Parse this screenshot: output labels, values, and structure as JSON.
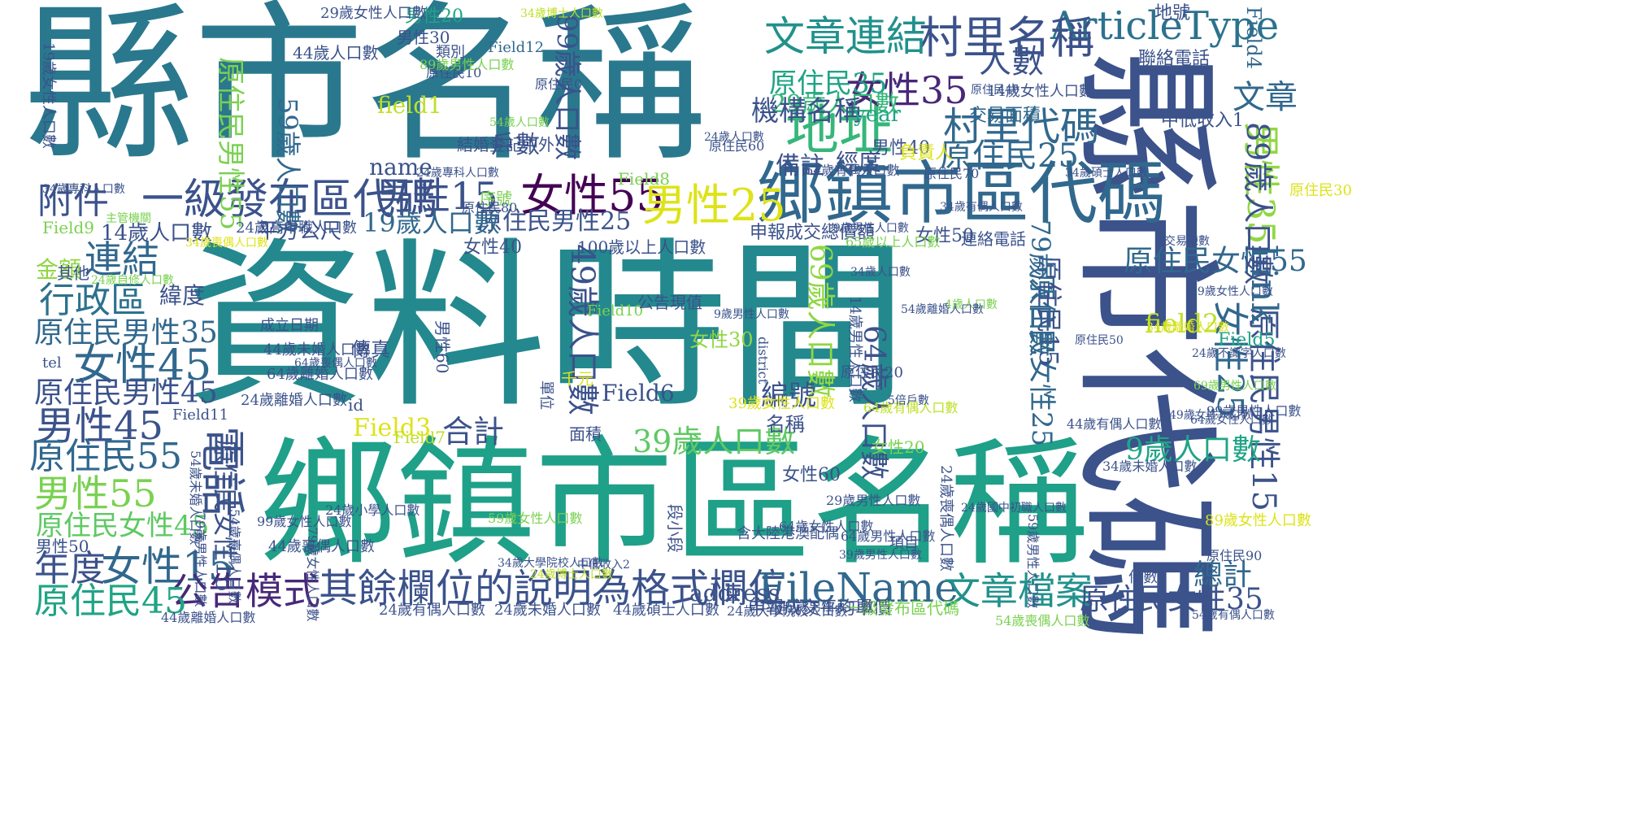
{
  "words": [
    {
      "text": "縣市名稱",
      "color": "#2a788e"
    },
    {
      "text": "資料時間",
      "color": "#23898e"
    },
    {
      "text": "鄉鎮市區名稱",
      "color": "#1fa088"
    },
    {
      "text": "縣市代碼",
      "color": "#3b528b"
    },
    {
      "text": "鄉鎮市區代碼",
      "color": "#31688e"
    },
    {
      "text": "一級發布區代碼",
      "color": "#3b528b"
    },
    {
      "text": "其餘欄位的說明為格式欄位",
      "color": "#3b528b"
    },
    {
      "text": "FileName",
      "color": "#31688e"
    },
    {
      "text": "ArticleType",
      "color": "#2c728e"
    },
    {
      "text": "村里名稱",
      "color": "#3b528b"
    },
    {
      "text": "村里代碼",
      "color": "#31688e"
    },
    {
      "text": "文章連結",
      "color": "#21918c"
    },
    {
      "text": "地址",
      "color": "#35b779"
    },
    {
      "text": "女性35",
      "color": "#482878"
    },
    {
      "text": "男性35",
      "color": "#90d743"
    },
    {
      "text": "女性25",
      "color": "#31688e"
    },
    {
      "text": "原住民男性15",
      "color": "#3b528b"
    },
    {
      "text": "女性55",
      "color": "#440154"
    },
    {
      "text": "男性25",
      "color": "#dde318"
    },
    {
      "text": "男性15",
      "color": "#3b528b"
    },
    {
      "text": "女性45",
      "color": "#31688e"
    },
    {
      "text": "男性45",
      "color": "#3b528b"
    },
    {
      "text": "男性55",
      "color": "#7ad151"
    },
    {
      "text": "女性15",
      "color": "#31688e"
    },
    {
      "text": "電話",
      "color": "#3b528b"
    },
    {
      "text": "公告模式",
      "color": "#482878"
    },
    {
      "text": "文章檔案",
      "color": "#21918c"
    },
    {
      "text": "原住民25",
      "color": "#31688e"
    },
    {
      "text": "人數",
      "color": "#3b528b"
    },
    {
      "text": "29歲人口數",
      "color": "#35b779"
    },
    {
      "text": "原住民35",
      "color": "#20a486"
    },
    {
      "text": "文章",
      "color": "#31688e"
    },
    {
      "text": "附件",
      "color": "#3b528b"
    },
    {
      "text": "連結",
      "color": "#31688e"
    },
    {
      "text": "行政區",
      "color": "#2c728e"
    },
    {
      "text": "原住民男性35",
      "color": "#31688e"
    },
    {
      "text": "原住民男性45",
      "color": "#3b528b"
    },
    {
      "text": "原住民55",
      "color": "#31688e"
    },
    {
      "text": "原住民女性45",
      "color": "#5ec962"
    },
    {
      "text": "年度",
      "color": "#3b528b"
    },
    {
      "text": "原住民45",
      "color": "#20a486"
    },
    {
      "text": "Link",
      "color": "#31688e"
    },
    {
      "text": "原住民女性55",
      "color": "#31688e"
    },
    {
      "text": "原住民女性35",
      "color": "#3b528b"
    },
    {
      "text": "總計",
      "color": "#31688e"
    },
    {
      "text": "9歲人口數",
      "color": "#20a486"
    },
    {
      "text": "89歲人口數",
      "color": "#3b528b"
    },
    {
      "text": "原住民男性55",
      "color": "#7ad151"
    },
    {
      "text": "原住民男性25",
      "color": "#3b528b"
    },
    {
      "text": "原住民女性25",
      "color": "#31688e"
    },
    {
      "text": "原住民15",
      "color": "#3b528b"
    },
    {
      "text": "79歲人口數",
      "color": "#31688e"
    },
    {
      "text": "原住民女性15",
      "color": "#3b528b"
    },
    {
      "text": "19歲人口數",
      "color": "#31688e"
    },
    {
      "text": "14歲人口數",
      "color": "#3b528b"
    },
    {
      "text": "39歲人口數",
      "color": "#5ec962"
    },
    {
      "text": "49歲人口數",
      "color": "#3b528b"
    },
    {
      "text": "59歲人口數",
      "color": "#31688e"
    },
    {
      "text": "64歲人口數",
      "color": "#3b528b"
    },
    {
      "text": "69歲人口數",
      "color": "#90d743"
    },
    {
      "text": "99歲人口數",
      "color": "#3b528b"
    },
    {
      "text": "合計",
      "color": "#3b528b"
    },
    {
      "text": "address",
      "color": "#3b528b"
    },
    {
      "text": "name",
      "color": "#3b528b"
    },
    {
      "text": "field1",
      "color": "#bddf26"
    },
    {
      "text": "field2",
      "color": "#bddf26"
    },
    {
      "text": "Field3",
      "color": "#dde318"
    },
    {
      "text": "Field4",
      "color": "#31688e"
    },
    {
      "text": "Field5",
      "color": "#20a486"
    },
    {
      "text": "Field6",
      "color": "#3b528b"
    },
    {
      "text": "Field7",
      "color": "#bddf26"
    },
    {
      "text": "Field8",
      "color": "#7ad151"
    },
    {
      "text": "Field9",
      "color": "#7ad151"
    },
    {
      "text": "Field10",
      "color": "#7ad151"
    },
    {
      "text": "Field11",
      "color": "#3b528b"
    },
    {
      "text": "Field12",
      "color": "#31688e"
    },
    {
      "text": "機構名稱",
      "color": "#3b528b"
    },
    {
      "text": "備註",
      "color": "#3b528b"
    },
    {
      "text": "戶數",
      "color": "#3b528b"
    },
    {
      "text": "編號",
      "color": "#3b528b"
    },
    {
      "text": "金額",
      "color": "#90d743"
    },
    {
      "text": "緯度",
      "color": "#3b528b"
    },
    {
      "text": "經度",
      "color": "#3b528b"
    },
    {
      "text": "year",
      "color": "#20a486"
    },
    {
      "text": "平方公尺",
      "color": "#3b528b"
    },
    {
      "text": "交易面積",
      "color": "#31688e"
    },
    {
      "text": "地號",
      "color": "#3b528b"
    },
    {
      "text": "聯絡電話",
      "color": "#3b528b"
    },
    {
      "text": "中低收入1",
      "color": "#3b528b"
    },
    {
      "text": "男性20",
      "color": "#20a486"
    },
    {
      "text": "男性30",
      "color": "#3b528b"
    },
    {
      "text": "男性40",
      "color": "#3b528b"
    },
    {
      "text": "男性50",
      "color": "#3b528b"
    },
    {
      "text": "男性60",
      "color": "#3b528b"
    },
    {
      "text": "女性20",
      "color": "#7ad151"
    },
    {
      "text": "女性30",
      "color": "#90d743"
    },
    {
      "text": "女性40",
      "color": "#3b528b"
    },
    {
      "text": "女性50",
      "color": "#3b528b"
    },
    {
      "text": "女性60",
      "color": "#3b528b"
    },
    {
      "text": "序號",
      "color": "#7ad151"
    },
    {
      "text": "id",
      "color": "#3b528b"
    },
    {
      "text": "傳真",
      "color": "#3b528b"
    },
    {
      "text": "名稱",
      "color": "#3b528b"
    },
    {
      "text": "千元",
      "color": "#dde318"
    },
    {
      "text": "面積",
      "color": "#3b528b"
    },
    {
      "text": "其他",
      "color": "#3b528b"
    },
    {
      "text": "類別",
      "color": "#3b528b"
    },
    {
      "text": "負責人",
      "color": "#dde318"
    },
    {
      "text": "項目",
      "color": "#3b528b"
    },
    {
      "text": "單位",
      "color": "#3b528b"
    },
    {
      "text": "件數",
      "color": "#3b528b"
    },
    {
      "text": "tel",
      "color": "#3b528b"
    },
    {
      "text": "district",
      "color": "#3b528b"
    },
    {
      "text": "公告現值",
      "color": "#3b528b"
    },
    {
      "text": "成立日期",
      "color": "#3b528b"
    },
    {
      "text": "連絡電話",
      "color": "#3b528b"
    },
    {
      "text": "交易棟數",
      "color": "#3b528b"
    },
    {
      "text": "主管機關",
      "color": "#7ad151"
    },
    {
      "text": "中低收入2",
      "color": "#3b528b"
    },
    {
      "text": "段小段",
      "color": "#3b528b"
    },
    {
      "text": "申報成交總價額",
      "color": "#3b528b"
    },
    {
      "text": "申報成交平均單價",
      "color": "#3b528b"
    },
    {
      "text": "100歲以上人口數",
      "color": "#3b528b"
    },
    {
      "text": "一級發布區代碼",
      "color": "#7ad151"
    },
    {
      "text": "結婚登記中外",
      "color": "#3b528b"
    },
    {
      "text": "含大陸港澳配偶",
      "color": "#3b528b"
    },
    {
      "text": "原住民0",
      "color": "#3b528b"
    },
    {
      "text": "原住民10",
      "color": "#3b528b"
    },
    {
      "text": "原住民20",
      "color": "#3b528b"
    },
    {
      "text": "原住民30",
      "color": "#dde318"
    },
    {
      "text": "原住民40",
      "color": "#3b528b"
    },
    {
      "text": "原住民50",
      "color": "#3b528b"
    },
    {
      "text": "原住民60",
      "color": "#3b528b"
    },
    {
      "text": "原住民70",
      "color": "#3b528b"
    },
    {
      "text": "原住民80",
      "color": "#3b528b"
    },
    {
      "text": "原住民90",
      "color": "#3b528b"
    },
    {
      "text": "29歲女性人口數",
      "color": "#3b528b"
    },
    {
      "text": "34歲博士人口數",
      "color": "#bddf26"
    },
    {
      "text": "89歲男性人口數",
      "color": "#7ad151"
    },
    {
      "text": "44歲人口數",
      "color": "#3b528b"
    },
    {
      "text": "19歲女性人口數",
      "color": "#3b528b"
    },
    {
      "text": "14歲女性人口數",
      "color": "#3b528b"
    },
    {
      "text": "54歲人口數",
      "color": "#7ad151"
    },
    {
      "text": "24歲人口數",
      "color": "#3b528b"
    },
    {
      "text": "34歲有偶人口數",
      "color": "#3b528b"
    },
    {
      "text": "24歲專科人口數",
      "color": "#3b528b"
    },
    {
      "text": "34歲碩士人口數",
      "color": "#3b528b"
    },
    {
      "text": "34歲專科人口數",
      "color": "#3b528b"
    },
    {
      "text": "34歲喪偶人口數",
      "color": "#dde318"
    },
    {
      "text": "24歲自修人口數",
      "color": "#7ad151"
    },
    {
      "text": "24歲高中職人口數",
      "color": "#3b528b"
    },
    {
      "text": "19歲男性人口數",
      "color": "#3b528b"
    },
    {
      "text": "65歲以上人口數",
      "color": "#7ad151"
    },
    {
      "text": "34歲人口數",
      "color": "#3b528b"
    },
    {
      "text": "4歲人口數",
      "color": "#7ad151"
    },
    {
      "text": "14歲男性人口數",
      "color": "#3b528b"
    },
    {
      "text": "44歲未婚人口數",
      "color": "#3b528b"
    },
    {
      "text": "64歲離婚人口數",
      "color": "#3b528b"
    },
    {
      "text": "24歲離婚人口數",
      "color": "#3b528b"
    },
    {
      "text": "64歲喪偶人口數",
      "color": "#3b528b"
    },
    {
      "text": "64歲有偶人口數",
      "color": "#bddf26"
    },
    {
      "text": "54歲離婚人口數",
      "color": "#3b528b"
    },
    {
      "text": "34歲離婚人口數",
      "color": "#dde318"
    },
    {
      "text": "69歲女性人口數",
      "color": "#3b528b"
    },
    {
      "text": "69歲男性人口數",
      "color": "#7ad151"
    },
    {
      "text": "24歲不識字人口數",
      "color": "#3b528b"
    },
    {
      "text": "99歲男性人口數",
      "color": "#3b528b"
    },
    {
      "text": "64歲女性人口數",
      "color": "#3b528b"
    },
    {
      "text": "5倍戶數",
      "color": "#3b528b"
    },
    {
      "text": "9歲男性人口數",
      "color": "#3b528b"
    },
    {
      "text": "39歲女性人口數",
      "color": "#dde318"
    },
    {
      "text": "54歲喪偶人口數",
      "color": "#3b528b"
    },
    {
      "text": "44歲喪偶人口數",
      "color": "#3b528b"
    },
    {
      "text": "79歲男性人口數",
      "color": "#3b528b"
    },
    {
      "text": "79歲女性人口數",
      "color": "#3b528b"
    },
    {
      "text": "24歲有偶人口數",
      "color": "#3b528b"
    },
    {
      "text": "24歲未婚人口數",
      "color": "#3b528b"
    },
    {
      "text": "44歲碩士人口數",
      "color": "#3b528b"
    },
    {
      "text": "24歲大學院校人口數",
      "color": "#3b528b"
    },
    {
      "text": "49歲男性人口數",
      "color": "#3b528b"
    },
    {
      "text": "54歲喪偶人口數",
      "color": "#7ad151"
    },
    {
      "text": "44歲離婚人口數",
      "color": "#3b528b"
    },
    {
      "text": "54歲未婚人口數",
      "color": "#3b528b"
    },
    {
      "text": "99歲女性人口數",
      "color": "#3b528b"
    },
    {
      "text": "39歲男性人口數",
      "color": "#3b528b"
    },
    {
      "text": "89歲女性人口數",
      "color": "#dde318"
    },
    {
      "text": "59歲男性人口數",
      "color": "#3b528b"
    },
    {
      "text": "29歲男性人口數",
      "color": "#3b528b"
    },
    {
      "text": "24歲喪偶人口數",
      "color": "#3b528b"
    },
    {
      "text": "34歲未婚人口數",
      "color": "#3b528b"
    },
    {
      "text": "44歲有偶人口數",
      "color": "#3b528b"
    },
    {
      "text": "24歲國中初職人口數",
      "color": "#3b528b"
    },
    {
      "text": "64歲有偶人口數",
      "color": "#3b528b"
    },
    {
      "text": "54歲有偶人口數",
      "color": "#3b528b"
    },
    {
      "text": "24歲博士人口數",
      "color": "#bddf26"
    },
    {
      "text": "49歲女性人口數",
      "color": "#3b528b"
    },
    {
      "text": "64歲女性人口數",
      "color": "#3b528b"
    },
    {
      "text": "24歲小學人口數",
      "color": "#3b528b"
    },
    {
      "text": "59歲女性人口數",
      "color": "#7ad151"
    },
    {
      "text": "34歲大學院校人口數",
      "color": "#3b528b"
    },
    {
      "text": "64歲男性人口數",
      "color": "#3b528b"
    }
  ]
}
